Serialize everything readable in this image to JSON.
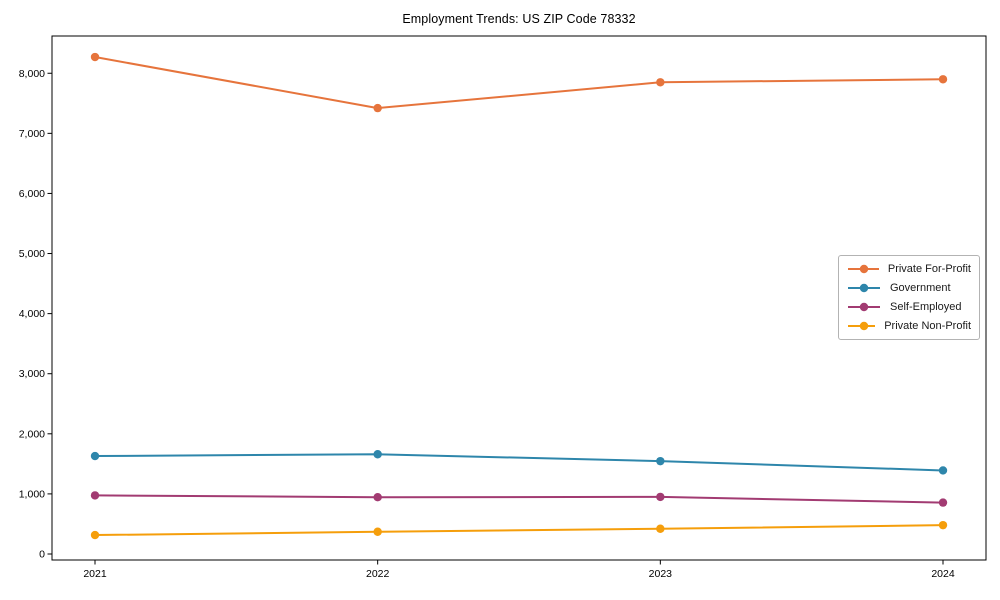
{
  "chart_data": {
    "type": "line",
    "title": "Employment Trends: US ZIP Code 78332",
    "xlabel": "",
    "ylabel": "",
    "categories": [
      "2021",
      "2022",
      "2023",
      "2024"
    ],
    "series": [
      {
        "name": "Private For-Profit",
        "color": "#E6743C",
        "values": [
          8270,
          7420,
          7850,
          7900
        ]
      },
      {
        "name": "Government",
        "color": "#2E86AB",
        "values": [
          1630,
          1660,
          1545,
          1390
        ]
      },
      {
        "name": "Self-Employed",
        "color": "#A23B72",
        "values": [
          975,
          945,
          950,
          855
        ]
      },
      {
        "name": "Private Non-Profit",
        "color": "#F59E0B",
        "values": [
          315,
          370,
          420,
          480
        ]
      }
    ],
    "yticks": [
      0,
      1000,
      2000,
      3000,
      4000,
      5000,
      6000,
      7000,
      8000
    ],
    "ytick_labels": [
      "0",
      "1,000",
      "2,000",
      "3,000",
      "4,000",
      "5,000",
      "6,000",
      "7,000",
      "8,000"
    ],
    "ylim": [
      -100,
      8620
    ],
    "grid": false,
    "legend_position": "center-right",
    "marker": "circle"
  }
}
